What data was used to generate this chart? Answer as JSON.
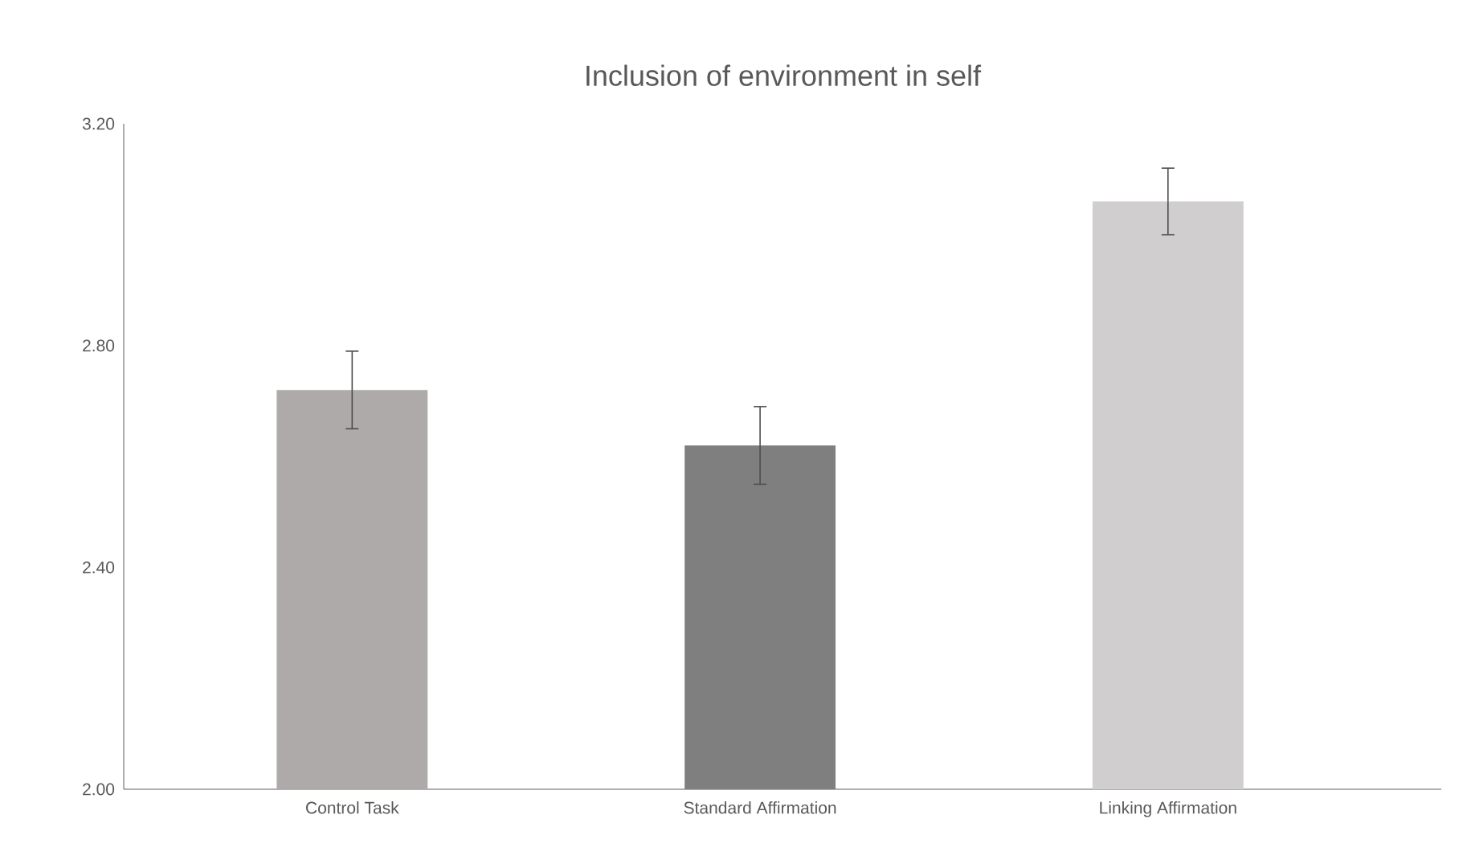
{
  "chart_data": {
    "type": "bar",
    "title": "Inclusion of environment in self",
    "categories": [
      "Control Task",
      "Standard Affirmation",
      "Linking Affirmation"
    ],
    "values": [
      2.72,
      2.62,
      3.06
    ],
    "errors": [
      0.07,
      0.07,
      0.06
    ],
    "colors": [
      "#aeaaaa",
      "#7f7f7f",
      "#d0cece"
    ],
    "ylim": [
      2.0,
      3.2
    ],
    "yticks": [
      {
        "value": 2.0,
        "label": "2.00"
      },
      {
        "value": 2.4,
        "label": "2.40"
      },
      {
        "value": 2.8,
        "label": "2.80"
      },
      {
        "value": 3.2,
        "label": "3.20"
      }
    ]
  }
}
